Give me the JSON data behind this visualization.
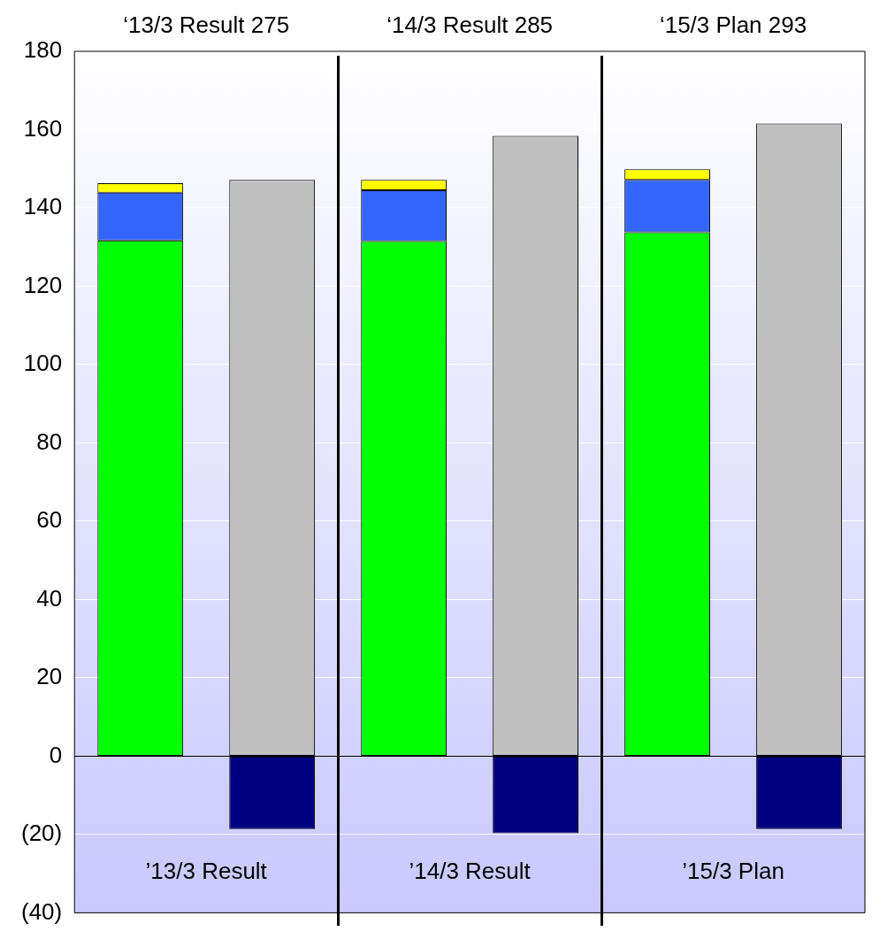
{
  "chart_data": {
    "type": "bar",
    "stacked": true,
    "categories": [
      null,
      null,
      null,
      null,
      null,
      null
    ],
    "series": [
      {
        "color": "#00ff00",
        "values": [
          131.7,
          null,
          131.5,
          null,
          133.8,
          null
        ]
      },
      {
        "color": "#3366ff",
        "values": [
          12.2,
          null,
          13.0,
          null,
          13.4,
          null
        ]
      },
      {
        "color": "#ffff00",
        "values": [
          2.4,
          null,
          2.7,
          null,
          2.7,
          null
        ]
      },
      {
        "color": "#c0c0c0",
        "values": [
          null,
          147.2,
          null,
          158.4,
          null,
          161.6
        ]
      },
      {
        "color": "#000080",
        "values": [
          null,
          -18.6,
          null,
          -19.7,
          null,
          -18.6
        ]
      }
    ],
    "ylim": [
      -40,
      180
    ],
    "yticks": [
      {
        "value": -40,
        "label": "(40)"
      },
      {
        "value": -20,
        "label": "(20)"
      },
      0,
      20,
      40,
      60,
      80,
      100,
      120,
      140,
      160,
      180
    ],
    "grid": "y",
    "legend": false,
    "tick_labels": "y",
    "annotations": [
      "‘13/3 Result 275",
      "‘14/3 Result 285",
      "‘15/3 Plan 293",
      "’13/3 Result",
      "’14/3 Result",
      "’15/3 Plan"
    ]
  }
}
